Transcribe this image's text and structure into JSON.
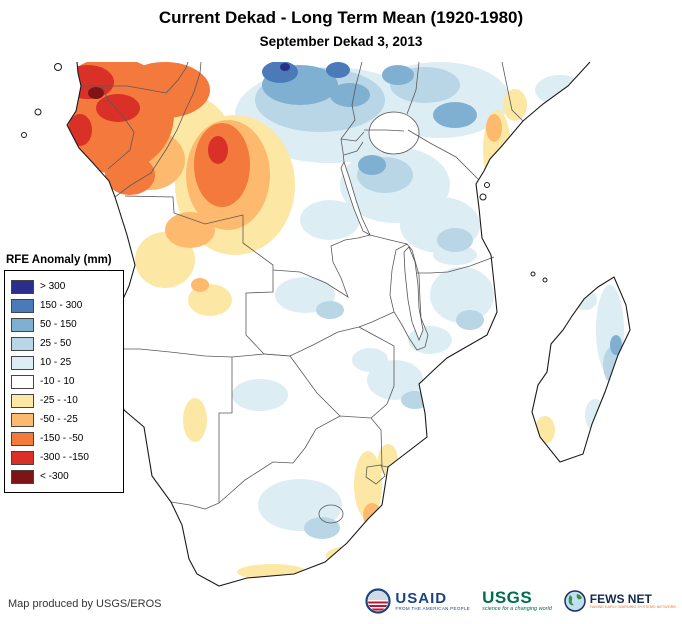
{
  "header": {
    "title": "Current Dekad - Long Term Mean (1920-1980)",
    "subtitle": "September Dekad 3, 2013"
  },
  "legend": {
    "title": "RFE Anomaly (mm)",
    "items": [
      {
        "label": "> 300",
        "color": "#2b2e8c"
      },
      {
        "label": "150 - 300",
        "color": "#4a7ab8"
      },
      {
        "label": "50 - 150",
        "color": "#7fafd1"
      },
      {
        "label": "25 - 50",
        "color": "#b8d6e6"
      },
      {
        "label": "10 - 25",
        "color": "#ddedf4"
      },
      {
        "label": "-10 - 10",
        "color": "#ffffff"
      },
      {
        "label": "-25 - -10",
        "color": "#fce8a4"
      },
      {
        "label": "-50 - -25",
        "color": "#fdba6e"
      },
      {
        "label": "-150 - -50",
        "color": "#f3793d"
      },
      {
        "label": "-300 - -150",
        "color": "#d93027"
      },
      {
        "label": "< -300",
        "color": "#7f1416"
      }
    ]
  },
  "footer": {
    "credit": "Map produced by USGS/EROS"
  },
  "logos": {
    "usaid": {
      "name": "USAID",
      "tagline": "FROM THE AMERICAN PEOPLE"
    },
    "usgs": {
      "name": "USGS",
      "tagline": "science for a changing world"
    },
    "fewsnet": {
      "name": "FEWS NET",
      "tagline": "FAMINE EARLY WARNING SYSTEMS NETWORK"
    }
  }
}
